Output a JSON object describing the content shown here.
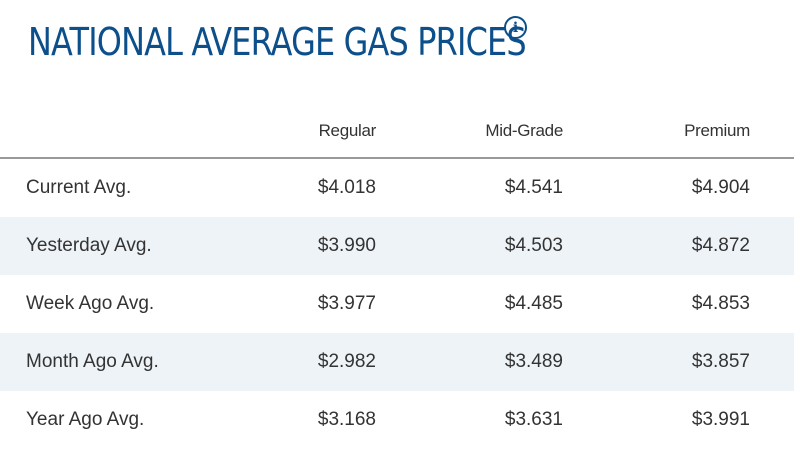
{
  "header": {
    "title": "NATIONAL AVERAGE GAS PRICES",
    "info_icon": "info-icon"
  },
  "table": {
    "columns": [
      "",
      "Regular",
      "Mid-Grade",
      "Premium"
    ],
    "rows": [
      {
        "label": "Current Avg.",
        "regular": "$4.018",
        "mid_grade": "$4.541",
        "premium": "$4.904"
      },
      {
        "label": "Yesterday Avg.",
        "regular": "$3.990",
        "mid_grade": "$4.503",
        "premium": "$4.872"
      },
      {
        "label": "Week Ago Avg.",
        "regular": "$3.977",
        "mid_grade": "$4.485",
        "premium": "$4.853"
      },
      {
        "label": "Month Ago Avg.",
        "regular": "$2.982",
        "mid_grade": "$3.489",
        "premium": "$3.857"
      },
      {
        "label": "Year Ago Avg.",
        "regular": "$3.168",
        "mid_grade": "$3.631",
        "premium": "$3.991"
      }
    ]
  },
  "colors": {
    "title": "#0d4f8b",
    "text": "#333333",
    "stripe": "#eef3f8",
    "header_rule": "#999999"
  }
}
